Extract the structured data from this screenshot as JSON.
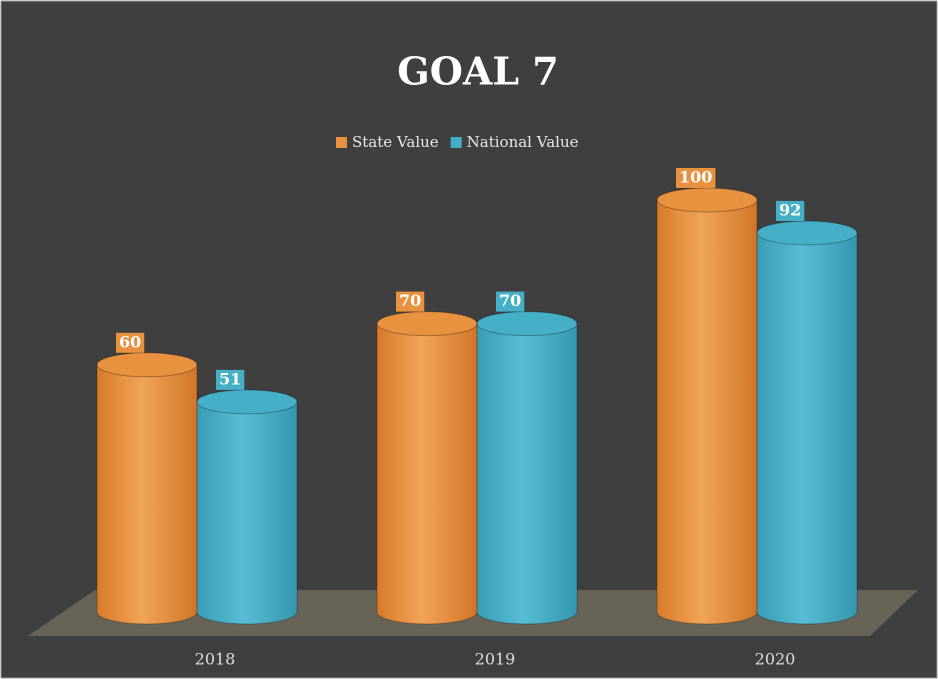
{
  "chart_data": {
    "type": "bar3d",
    "title": "GOAL 7",
    "categories": [
      "2018",
      "2019",
      "2020"
    ],
    "series": [
      {
        "name": "State Value",
        "color": "#e8913f",
        "values": [
          60,
          70,
          100
        ]
      },
      {
        "name": "National Value",
        "color": "#46afc8",
        "values": [
          51,
          70,
          92
        ]
      }
    ]
  }
}
